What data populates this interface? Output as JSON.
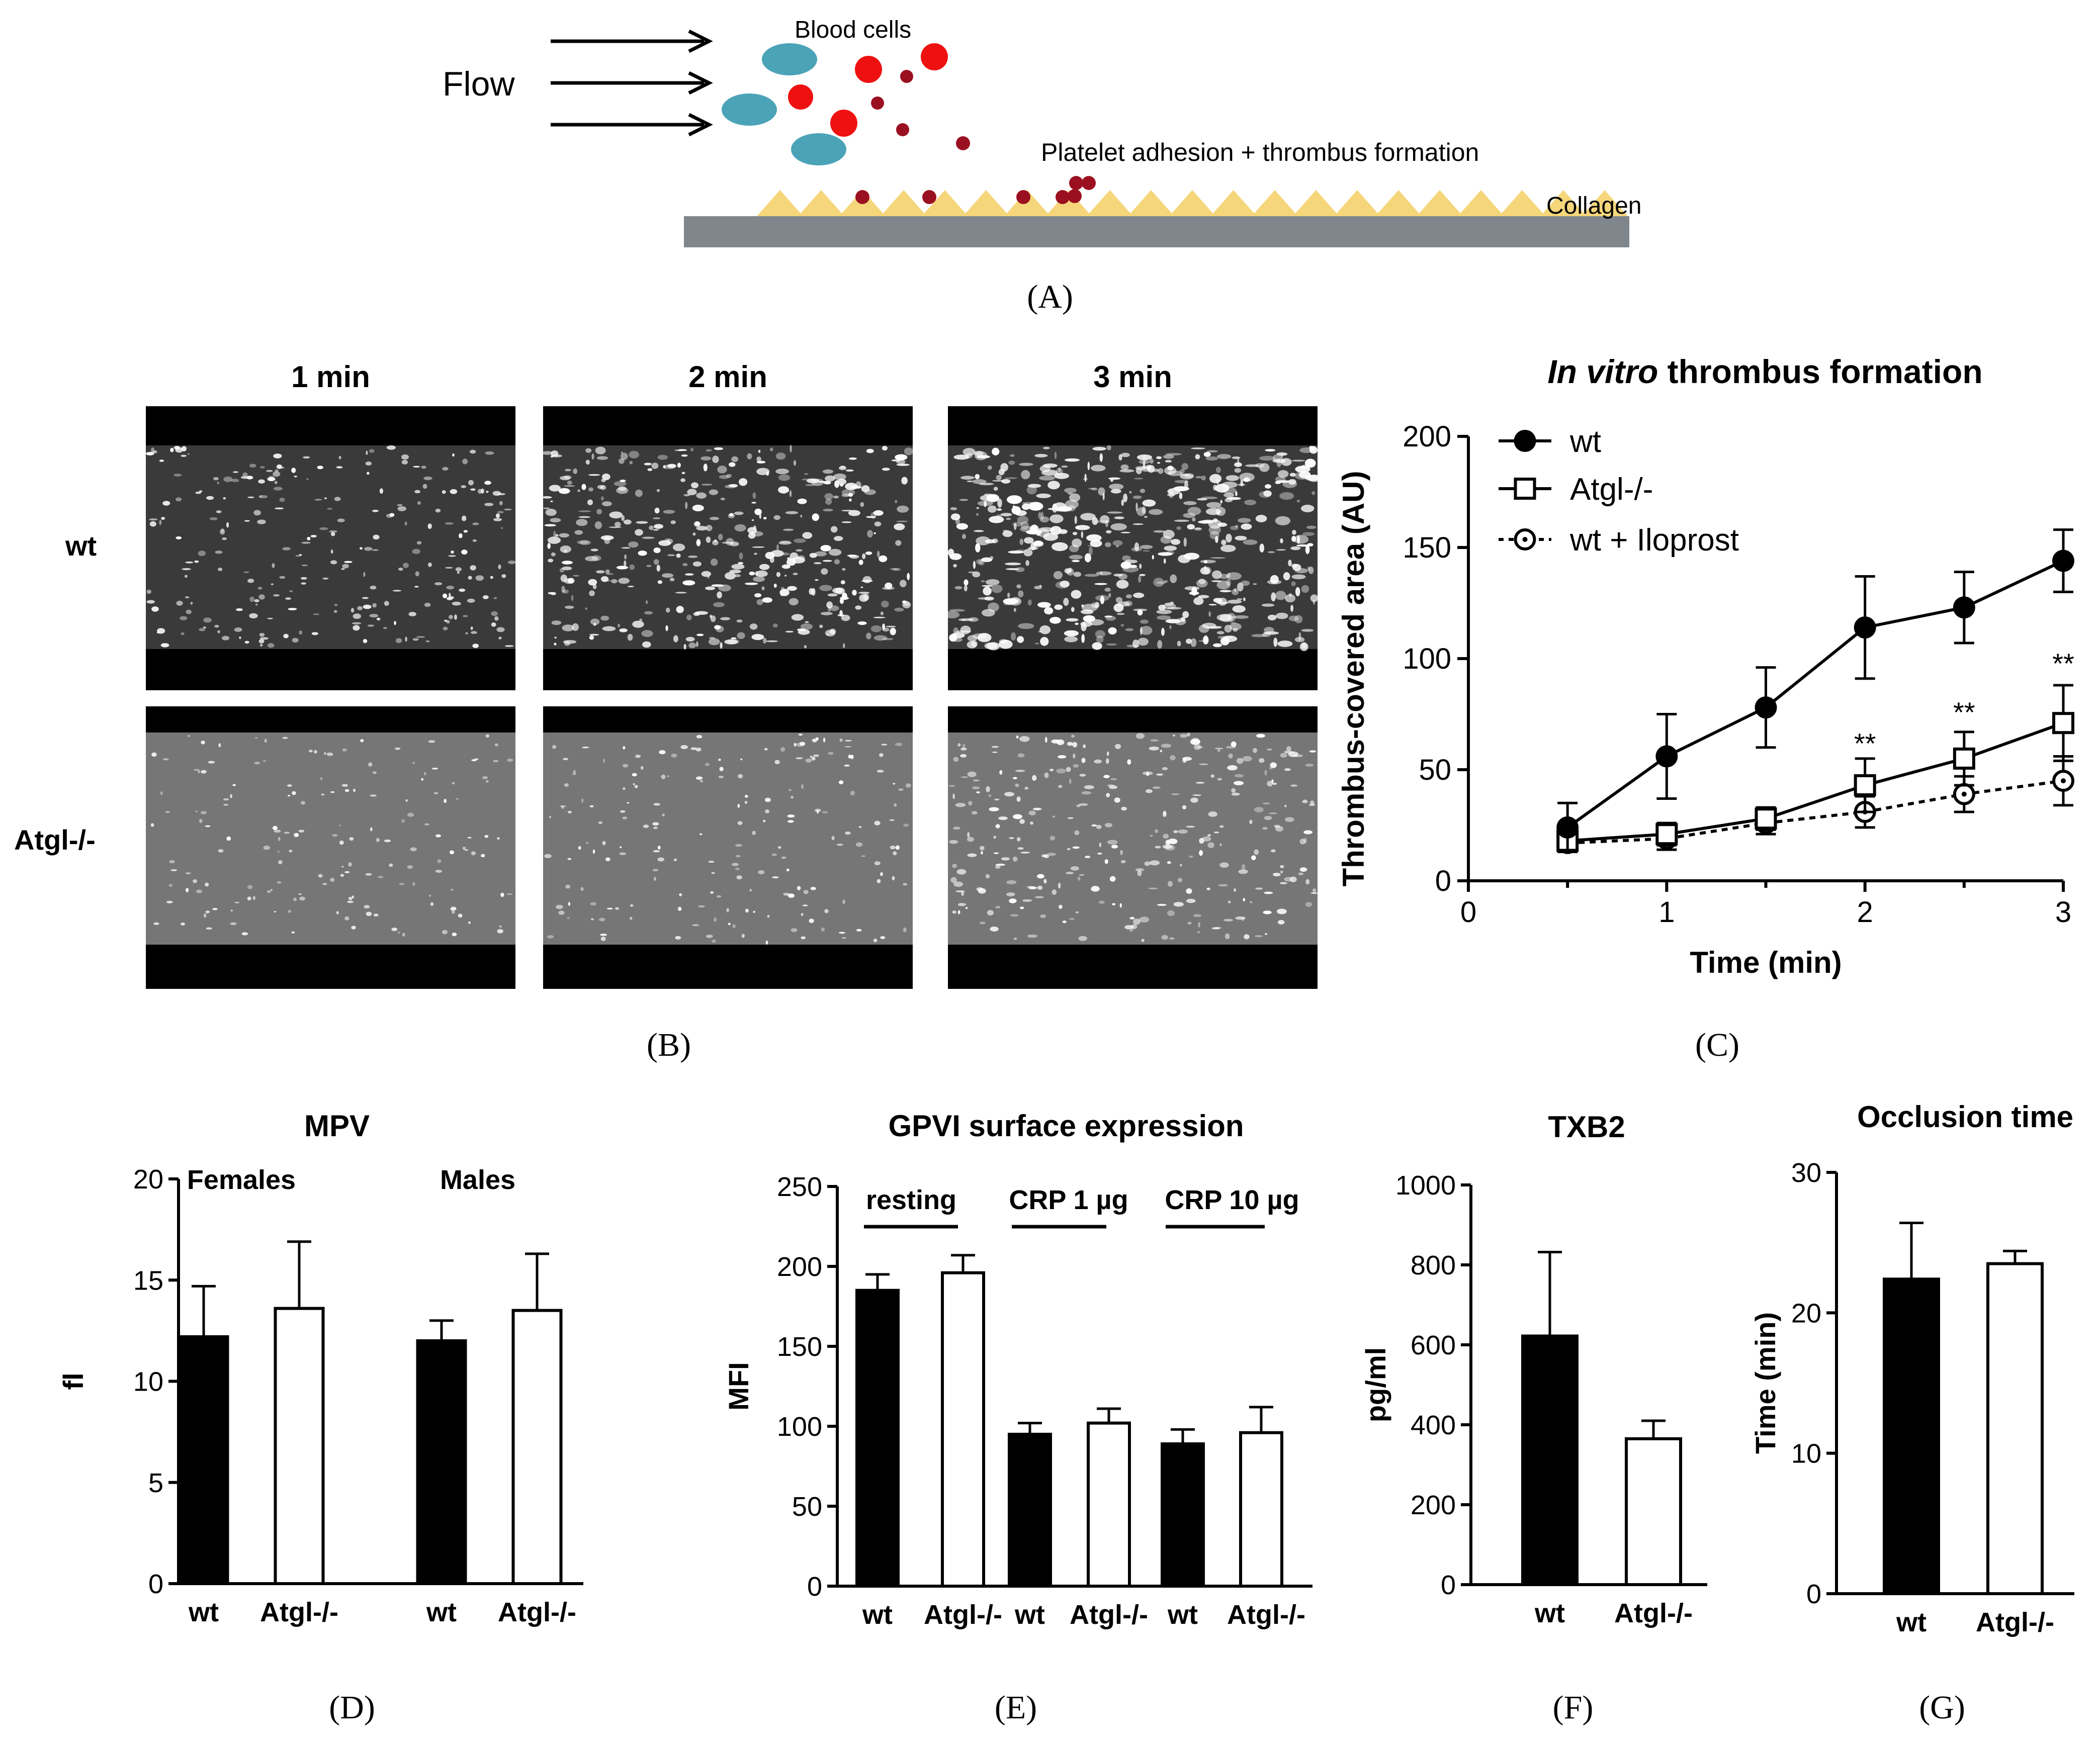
{
  "colors": {
    "black": "#000000",
    "white": "#ffffff",
    "red": "#ee1111",
    "dark_red": "#9b1020",
    "teal": "#4ba3b8",
    "collagen": "#f5d67a",
    "channel": "#7f868c"
  },
  "panel_a": {
    "flow_label": "Flow",
    "blood_cells_label": "Blood cells",
    "adhesion_label": "Platelet adhesion + thrombus formation",
    "collagen_label": "Collagen",
    "panel_label": "(A)",
    "flow_arrow_icon": "arrow-right-icon"
  },
  "panel_b": {
    "panel_label": "(B)",
    "time_labels": [
      "1 min",
      "2 min",
      "3 min"
    ],
    "row_labels": [
      "wt",
      "Atgl-/-"
    ],
    "image_intensity": {
      "wt": [
        0.35,
        0.7,
        0.95
      ],
      "Atgl-/-": [
        0.15,
        0.2,
        0.45
      ]
    }
  },
  "panel_c": {
    "panel_label": "(C)",
    "title_italic": "In vitro",
    "title_rest": " thrombus formation"
  },
  "panel_d": {
    "panel_label": "(D)"
  },
  "panel_e": {
    "panel_label": "(E)"
  },
  "panel_f": {
    "panel_label": "(F)"
  },
  "panel_g": {
    "panel_label": "(G)"
  },
  "chart_data": [
    {
      "id": "C",
      "type": "line",
      "title": "In vitro thrombus formation",
      "xlabel": "Time (min)",
      "ylabel": "Thrombus-covered area (AU)",
      "xlim": [
        0,
        3
      ],
      "ylim": [
        0,
        200
      ],
      "xticks": [
        "0",
        "1",
        "2",
        "3"
      ],
      "yticks": [
        "0",
        "50",
        "100",
        "150",
        "200"
      ],
      "x": [
        0.5,
        1,
        1.5,
        2,
        2.5,
        3
      ],
      "series": [
        {
          "name": "wt",
          "marker": "filled-circle",
          "line": "solid",
          "values": [
            24,
            56,
            78,
            114,
            123,
            144
          ],
          "errors": [
            11,
            19,
            18,
            23,
            16,
            14
          ]
        },
        {
          "name": "Atgl-/-",
          "marker": "open-square",
          "line": "solid",
          "values": [
            18,
            21,
            28,
            43,
            55,
            71
          ],
          "errors": [
            5,
            5,
            5,
            12,
            12,
            17
          ]
        },
        {
          "name": "wt + Iloprost",
          "marker": "open-circle",
          "line": "dotted",
          "values": [
            17,
            19,
            26,
            31,
            39,
            45
          ],
          "errors": [
            4,
            5,
            5,
            7,
            8,
            11
          ]
        }
      ],
      "annotations": [
        {
          "x": 2,
          "y": 62,
          "text": "**"
        },
        {
          "x": 2.5,
          "y": 76,
          "text": "**"
        },
        {
          "x": 3,
          "y": 98,
          "text": "**"
        }
      ],
      "legend": "top-left"
    },
    {
      "id": "D",
      "type": "bar",
      "title": "MPV",
      "ylabel": "fl",
      "ylim": [
        0,
        20
      ],
      "yticks": [
        "0",
        "5",
        "10",
        "15",
        "20"
      ],
      "groups": [
        "Females",
        "Males"
      ],
      "categories": [
        "wt",
        "Atgl-/-",
        "wt",
        "Atgl-/-"
      ],
      "values": [
        12.2,
        13.6,
        12.0,
        13.5
      ],
      "errors": [
        2.5,
        3.3,
        1.0,
        2.8
      ],
      "fills": [
        "black",
        "white",
        "black",
        "white"
      ]
    },
    {
      "id": "E",
      "type": "bar",
      "title": "GPVI surface expression",
      "ylabel": "MFI",
      "ylim": [
        0,
        250
      ],
      "yticks": [
        "0",
        "50",
        "100",
        "150",
        "200",
        "250"
      ],
      "groups": [
        "resting",
        "CRP 1 µg",
        "CRP 10 µg"
      ],
      "categories": [
        "wt",
        "Atgl-/-",
        "wt",
        "Atgl-/-",
        "wt",
        "Atgl-/-"
      ],
      "values": [
        185,
        196,
        95,
        102,
        89,
        96
      ],
      "errors": [
        10,
        11,
        7,
        9,
        9,
        16
      ],
      "fills": [
        "black",
        "white",
        "black",
        "white",
        "black",
        "white"
      ]
    },
    {
      "id": "F",
      "type": "bar",
      "title": "TXB2",
      "ylabel": "pg/ml",
      "ylim": [
        0,
        1000
      ],
      "yticks": [
        "0",
        "200",
        "400",
        "600",
        "800",
        "1000"
      ],
      "categories": [
        "wt",
        "Atgl-/-"
      ],
      "values": [
        622,
        365
      ],
      "errors": [
        210,
        45
      ],
      "fills": [
        "black",
        "white"
      ]
    },
    {
      "id": "G",
      "type": "bar",
      "title": "Occlusion time",
      "ylabel": "Time (min)",
      "ylim": [
        0,
        30
      ],
      "yticks": [
        "0",
        "10",
        "20",
        "30"
      ],
      "categories": [
        "wt",
        "Atgl-/-"
      ],
      "values": [
        22.4,
        23.5
      ],
      "errors": [
        4.0,
        0.9
      ],
      "fills": [
        "black",
        "white"
      ]
    }
  ]
}
